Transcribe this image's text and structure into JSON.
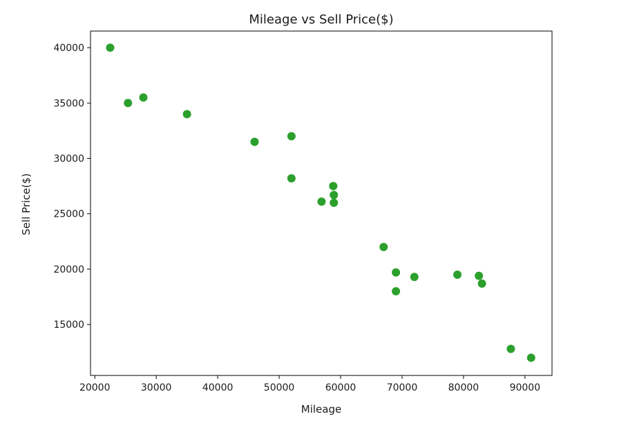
{
  "chart_data": {
    "type": "scatter",
    "title": "Mileage vs Sell Price($)",
    "xlabel": "Mileage",
    "ylabel": "Sell Price($)",
    "xlim": [
      19300,
      94400
    ],
    "ylim": [
      10400,
      41500
    ],
    "xticks": [
      20000,
      30000,
      40000,
      50000,
      60000,
      70000,
      80000,
      90000
    ],
    "yticks": [
      15000,
      20000,
      25000,
      30000,
      35000,
      40000
    ],
    "xtick_labels": [
      "20000",
      "30000",
      "40000",
      "50000",
      "60000",
      "70000",
      "80000",
      "90000"
    ],
    "ytick_labels": [
      "15000",
      "20000",
      "25000",
      "30000",
      "35000",
      "40000"
    ],
    "grid": false,
    "legend": false,
    "marker_color": "#2ca02c",
    "series": [
      {
        "points": [
          {
            "x": 22500,
            "y": 40000
          },
          {
            "x": 25400,
            "y": 35000
          },
          {
            "x": 27900,
            "y": 35500
          },
          {
            "x": 35000,
            "y": 34000
          },
          {
            "x": 46000,
            "y": 31500
          },
          {
            "x": 52000,
            "y": 32000
          },
          {
            "x": 52000,
            "y": 28200
          },
          {
            "x": 56900,
            "y": 26100
          },
          {
            "x": 58800,
            "y": 27500
          },
          {
            "x": 58900,
            "y": 26700
          },
          {
            "x": 58900,
            "y": 26000
          },
          {
            "x": 67000,
            "y": 22000
          },
          {
            "x": 69000,
            "y": 19700
          },
          {
            "x": 69000,
            "y": 18000
          },
          {
            "x": 72000,
            "y": 19300
          },
          {
            "x": 79000,
            "y": 19500
          },
          {
            "x": 82500,
            "y": 19400
          },
          {
            "x": 83000,
            "y": 18700
          },
          {
            "x": 87700,
            "y": 12800
          },
          {
            "x": 91000,
            "y": 12000
          }
        ]
      }
    ]
  }
}
